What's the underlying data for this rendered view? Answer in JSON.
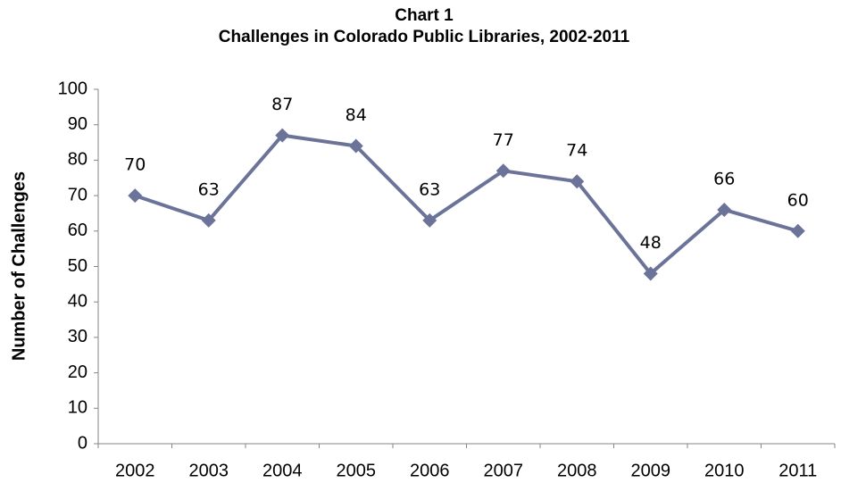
{
  "chart_data": {
    "type": "line",
    "title": "Chart 1",
    "subtitle": "Challenges in Colorado Public Libraries, 2002-2011",
    "y_label": "Number of Challenges",
    "categories": [
      "2002",
      "2003",
      "2004",
      "2005",
      "2006",
      "2007",
      "2008",
      "2009",
      "2010",
      "2011"
    ],
    "series": [
      {
        "name": "Challenges",
        "color": "#6b7399",
        "values": [
          70,
          63,
          87,
          84,
          63,
          77,
          74,
          48,
          66,
          60
        ]
      }
    ],
    "ylim": [
      0,
      100
    ],
    "yticks": [
      0,
      10,
      20,
      30,
      40,
      50,
      60,
      70,
      80,
      90,
      100
    ],
    "grid": false
  }
}
